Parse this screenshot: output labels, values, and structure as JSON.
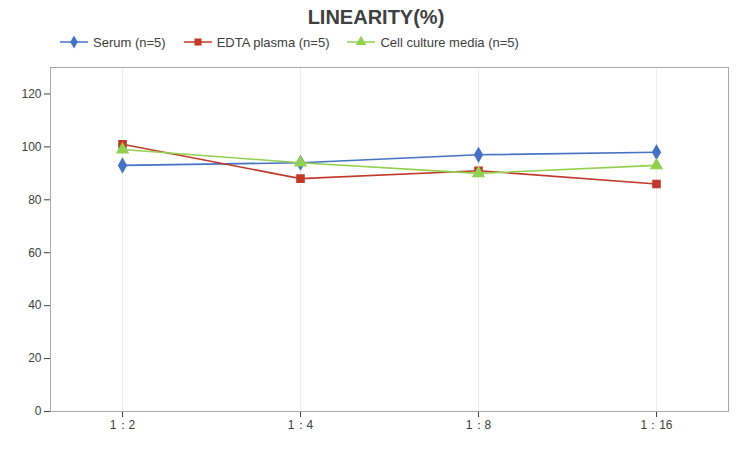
{
  "chart_data": {
    "type": "line",
    "title": "LINEARITY(%)",
    "categories": [
      "1：2",
      "1：4",
      "1：8",
      "1：16"
    ],
    "series": [
      {
        "name": "Serum (n=5)",
        "color": "#4472C4",
        "marker": "diamond",
        "values": [
          93,
          94,
          97,
          98
        ]
      },
      {
        "name": "EDTA plasma (n=5)",
        "color": "#C0392B",
        "marker": "square",
        "values": [
          101,
          88,
          91,
          86
        ]
      },
      {
        "name": "Cell culture media (n=5)",
        "color": "#92D050",
        "marker": "triangle",
        "values": [
          99,
          94,
          90,
          93
        ]
      }
    ],
    "ylim": [
      0,
      130
    ],
    "yticks": [
      0,
      20,
      40,
      60,
      80,
      100,
      120
    ],
    "grid": "x",
    "legend": "top"
  }
}
